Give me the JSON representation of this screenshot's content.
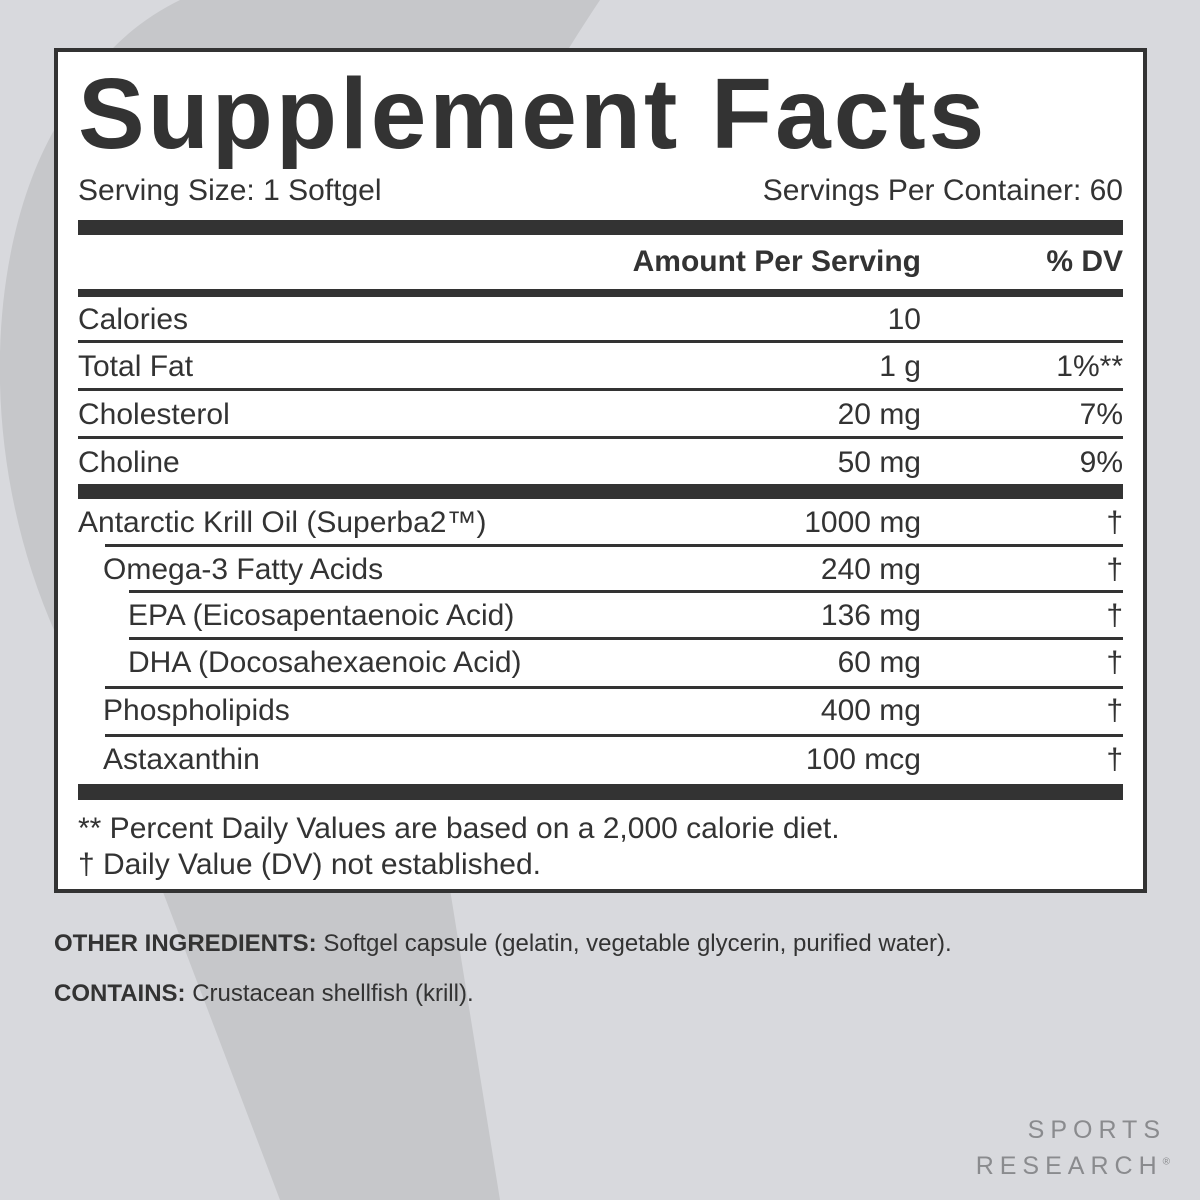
{
  "title": "Supplement Facts",
  "serving_size": "Serving Size: 1 Softgel",
  "servings_per_container": "Servings Per Container: 60",
  "header": {
    "amount": "Amount Per Serving",
    "dv": "% DV"
  },
  "nutrients": [
    {
      "name": "Calories",
      "amount": "10",
      "dv": ""
    },
    {
      "name": "Total Fat",
      "amount": "1 g",
      "dv": "1%**"
    },
    {
      "name": "Cholesterol",
      "amount": "20 mg",
      "dv": "7%"
    },
    {
      "name": "Choline",
      "amount": "50 mg",
      "dv": "9%"
    }
  ],
  "ingredients": [
    {
      "name": "Antarctic Krill Oil (Superba2™)",
      "amount": "1000 mg",
      "dv": "†"
    },
    {
      "name": "Omega-3 Fatty Acids",
      "amount": "240 mg",
      "dv": "†"
    },
    {
      "name": "EPA (Eicosapentaenoic Acid)",
      "amount": "136 mg",
      "dv": "†"
    },
    {
      "name": "DHA (Docosahexaenoic Acid)",
      "amount": "60 mg",
      "dv": "†"
    },
    {
      "name": "Phospholipids",
      "amount": "400 mg",
      "dv": "†"
    },
    {
      "name": "Astaxanthin",
      "amount": "100 mcg",
      "dv": "†"
    }
  ],
  "footnotes": [
    "** Percent Daily Values are based on a 2,000 calorie diet.",
    "†  Daily Value (DV) not established."
  ],
  "other_ingredients": {
    "label": "OTHER INGREDIENTS:",
    "text": " Softgel capsule (gelatin, vegetable glycerin, purified water)."
  },
  "contains": {
    "label": "CONTAINS:",
    "text": " Crustacean shellfish (krill)."
  },
  "brand": {
    "line1": "SPORTS",
    "line2": "RESEARCH",
    "mark": "®"
  },
  "colors": {
    "text": "#333333",
    "background": "#d8d9dd",
    "panel": "#ffffff"
  }
}
